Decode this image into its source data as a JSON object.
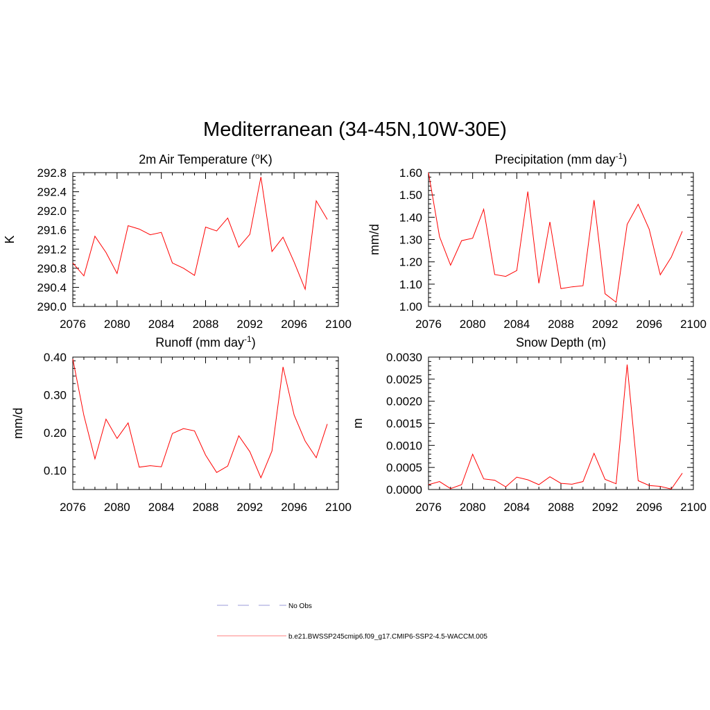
{
  "title": "Mediterranean (34-45N,10W-30E)",
  "legend": [
    {
      "label": "No Obs",
      "color": "#9a9ad8",
      "dash": true
    },
    {
      "label": "b.e21.BWSSP245cmip6.f09_g17.CMIP6-SSP2-4.5-WACCM.005",
      "color": "#ff7f7f",
      "dash": false
    }
  ],
  "chart_data": [
    {
      "type": "line",
      "title": "2m Air Temperature (°K)",
      "title_parts": {
        "main": "2m Air Temperature (",
        "sup": "o",
        "end": "K)"
      },
      "ylabel": "K",
      "xlim": [
        2076,
        2100
      ],
      "ylim": [
        290.0,
        292.8
      ],
      "xticks": [
        "2076",
        "2080",
        "2084",
        "2088",
        "2092",
        "2096",
        "2100"
      ],
      "yticks": [
        "290.0",
        "290.4",
        "290.8",
        "291.2",
        "291.6",
        "292.0",
        "292.4",
        "292.8"
      ],
      "series": [
        {
          "name": "b.e21.BWSSP245cmip6.f09_g17.CMIP6-SSP2-4.5-WACCM.005",
          "color": "#ff0000",
          "x": [
            2076,
            2077,
            2078,
            2079,
            2080,
            2081,
            2082,
            2083,
            2084,
            2085,
            2086,
            2087,
            2088,
            2089,
            2090,
            2091,
            2092,
            2093,
            2094,
            2095,
            2096,
            2097,
            2098,
            2099
          ],
          "values": [
            290.91,
            290.64,
            291.47,
            291.13,
            290.69,
            291.69,
            291.62,
            291.5,
            291.55,
            290.91,
            290.8,
            290.65,
            291.66,
            291.58,
            291.85,
            291.24,
            291.51,
            292.71,
            291.15,
            291.45,
            290.93,
            290.36,
            292.21,
            291.82
          ]
        }
      ]
    },
    {
      "type": "line",
      "title": "Precipitation (mm day-1)",
      "title_parts": {
        "main": "Precipitation (mm day",
        "sup": "-1",
        "end": ")"
      },
      "ylabel": "mm/d",
      "xlim": [
        2076,
        2100
      ],
      "ylim": [
        1.0,
        1.6
      ],
      "xticks": [
        "2076",
        "2080",
        "2084",
        "2088",
        "2092",
        "2096",
        "2100"
      ],
      "yticks": [
        "1.00",
        "1.10",
        "1.20",
        "1.30",
        "1.40",
        "1.50",
        "1.60"
      ],
      "series": [
        {
          "name": "b.e21.BWSSP245cmip6.f09_g17.CMIP6-SSP2-4.5-WACCM.005",
          "color": "#ff0000",
          "x": [
            2076,
            2077,
            2078,
            2079,
            2080,
            2081,
            2082,
            2083,
            2084,
            2085,
            2086,
            2087,
            2088,
            2089,
            2090,
            2091,
            2092,
            2093,
            2094,
            2095,
            2096,
            2097,
            2098,
            2099
          ],
          "values": [
            1.6,
            1.313,
            1.185,
            1.295,
            1.306,
            1.436,
            1.143,
            1.135,
            1.161,
            1.515,
            1.104,
            1.379,
            1.08,
            1.088,
            1.093,
            1.477,
            1.057,
            1.019,
            1.368,
            1.458,
            1.346,
            1.142,
            1.221,
            1.337
          ]
        }
      ]
    },
    {
      "type": "line",
      "title": "Runoff (mm day-1)",
      "title_parts": {
        "main": "Runoff (mm day",
        "sup": "-1",
        "end": ")"
      },
      "ylabel": "mm/d",
      "xlim": [
        2076,
        2100
      ],
      "ylim": [
        0.05,
        0.4
      ],
      "xticks": [
        "2076",
        "2080",
        "2084",
        "2088",
        "2092",
        "2096",
        "2100"
      ],
      "yticks": [
        "0.10",
        "0.20",
        "0.30",
        "0.40"
      ],
      "series": [
        {
          "name": "b.e21.BWSSP245cmip6.f09_g17.CMIP6-SSP2-4.5-WACCM.005",
          "color": "#ff0000",
          "x": [
            2076,
            2077,
            2078,
            2079,
            2080,
            2081,
            2082,
            2083,
            2084,
            2085,
            2086,
            2087,
            2088,
            2089,
            2090,
            2091,
            2092,
            2093,
            2094,
            2095,
            2096,
            2097,
            2098,
            2099
          ],
          "values": [
            0.395,
            0.246,
            0.131,
            0.236,
            0.185,
            0.226,
            0.109,
            0.113,
            0.11,
            0.198,
            0.211,
            0.205,
            0.141,
            0.095,
            0.112,
            0.192,
            0.15,
            0.081,
            0.152,
            0.374,
            0.247,
            0.178,
            0.134,
            0.223
          ]
        }
      ]
    },
    {
      "type": "line",
      "title": "Snow Depth (m)",
      "title_parts": {
        "main": "Snow Depth (m)",
        "sup": "",
        "end": ""
      },
      "ylabel": "m",
      "xlim": [
        2076,
        2100
      ],
      "ylim": [
        0.0,
        0.003
      ],
      "xticks": [
        "2076",
        "2080",
        "2084",
        "2088",
        "2092",
        "2096",
        "2100"
      ],
      "yticks": [
        "0.0000",
        "0.0005",
        "0.0010",
        "0.0015",
        "0.0020",
        "0.0025",
        "0.0030"
      ],
      "series": [
        {
          "name": "b.e21.BWSSP245cmip6.f09_g17.CMIP6-SSP2-4.5-WACCM.005",
          "color": "#ff0000",
          "x": [
            2076,
            2077,
            2078,
            2079,
            2080,
            2081,
            2082,
            2083,
            2084,
            2085,
            2086,
            2087,
            2088,
            2089,
            2090,
            2091,
            2092,
            2093,
            2094,
            2095,
            2096,
            2097,
            2098,
            2099
          ],
          "values": [
            0.00011,
            0.00018,
            2e-05,
            0.00011,
            0.0008,
            0.00024,
            0.00021,
            6e-05,
            0.00028,
            0.00022,
            0.00011,
            0.00029,
            0.00014,
            0.00012,
            0.00018,
            0.00082,
            0.00023,
            0.00013,
            0.00283,
            0.0002,
            9e-05,
            7e-05,
            1e-05,
            0.00037
          ]
        }
      ]
    }
  ]
}
